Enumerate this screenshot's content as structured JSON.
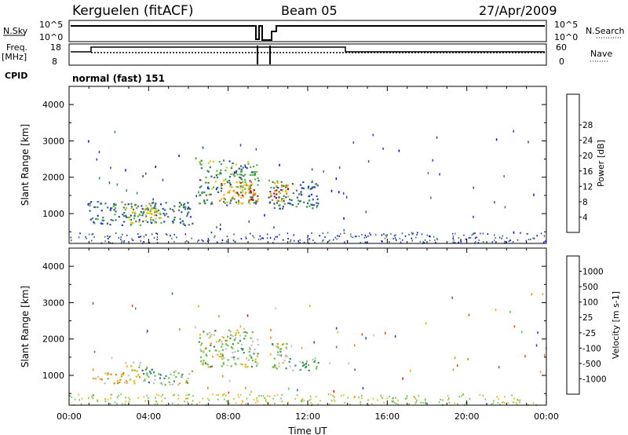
{
  "header": {
    "station": "Kerguelen (fitACF)",
    "beam": "Beam 05",
    "date": "27/Apr/2009"
  },
  "status_panels": {
    "nsky_label": "N.Sky",
    "nsky_ticks": [
      "10^5",
      "10^0"
    ],
    "nsearch_label": "N.Search",
    "freq_label": "Freq.",
    "freq_unit": "[MHz]",
    "freq_ticks": [
      "18",
      "8"
    ],
    "nave_label": "Nave",
    "nave_ticks": [
      "60",
      "0"
    ],
    "cpid_label": "CPID",
    "cpid_text": "normal (fast) 151"
  },
  "chart_data": [
    {
      "type": "heatmap",
      "name": "power",
      "ylabel": "Slant Range [km]",
      "xlabel": "",
      "ylim": [
        180,
        4500
      ],
      "xlim": [
        0,
        24
      ],
      "yticks": [
        "1000",
        "2000",
        "3000",
        "4000"
      ],
      "xticks": [
        "00:00",
        "04:00",
        "08:00",
        "12:00",
        "16:00",
        "20:00",
        "00:00"
      ],
      "colorbar": {
        "label": "Power [dB]",
        "ticks": [
          "4",
          "8",
          "12",
          "16",
          "20",
          "24",
          "28"
        ],
        "colors": [
          "#0000ff",
          "#1a3fc8",
          "#2d55a0",
          "#3c8060",
          "#4cbb3c",
          "#d0d020",
          "#f0b000",
          "#f07000",
          "#e00000"
        ]
      },
      "patches": [
        {
          "t0": 1.0,
          "t1": 6.2,
          "r0": 700,
          "r1": 1350,
          "level": 3
        },
        {
          "t0": 2.8,
          "t1": 4.6,
          "r0": 750,
          "r1": 1250,
          "level": 6
        },
        {
          "t0": 6.5,
          "t1": 9.5,
          "r0": 1250,
          "r1": 2500,
          "level": 4
        },
        {
          "t0": 7.5,
          "t1": 9.5,
          "r0": 1300,
          "r1": 1900,
          "level": 7
        },
        {
          "t0": 10.0,
          "t1": 12.5,
          "r0": 1150,
          "r1": 1950,
          "level": 3
        },
        {
          "t0": 10.1,
          "t1": 11.0,
          "r0": 1250,
          "r1": 1900,
          "level": 7
        }
      ]
    },
    {
      "type": "heatmap",
      "name": "velocity",
      "ylabel": "Slant Range [km]",
      "xlabel": "Time UT",
      "ylim": [
        180,
        4500
      ],
      "xlim": [
        0,
        24
      ],
      "yticks": [
        "1000",
        "2000",
        "3000",
        "4000"
      ],
      "xticks": [
        "00:00",
        "04:00",
        "08:00",
        "12:00",
        "16:00",
        "20:00",
        "00:00"
      ],
      "colorbar": {
        "label": "Velocity [m s-1]",
        "ticks": [
          "1000",
          "500",
          "100",
          "25",
          "-25",
          "-100",
          "-500",
          "-1000"
        ],
        "colors": [
          "#1a3fc8",
          "#2d6aa0",
          "#3c9060",
          "#5cc83c",
          "#c0c0c0",
          "#f0b000",
          "#f08000",
          "#f04000",
          "#e00000"
        ]
      },
      "patches": [
        {
          "t0": 1.0,
          "t1": 2.8,
          "r0": 800,
          "r1": 1100,
          "level": 5
        },
        {
          "t0": 2.8,
          "t1": 3.6,
          "r0": 800,
          "r1": 1400,
          "level": 5
        },
        {
          "t0": 3.6,
          "t1": 4.6,
          "r0": 800,
          "r1": 1300,
          "level": 3
        },
        {
          "t0": 4.6,
          "t1": 6.2,
          "r0": 750,
          "r1": 1150,
          "level": 4
        },
        {
          "t0": 6.5,
          "t1": 9.5,
          "r0": 1250,
          "r1": 2300,
          "level": 4
        },
        {
          "t0": 10.0,
          "t1": 11.0,
          "r0": 1200,
          "r1": 1900,
          "level": 4
        },
        {
          "t0": 11.0,
          "t1": 12.5,
          "r0": 1150,
          "r1": 1500,
          "level": 3
        }
      ]
    }
  ]
}
